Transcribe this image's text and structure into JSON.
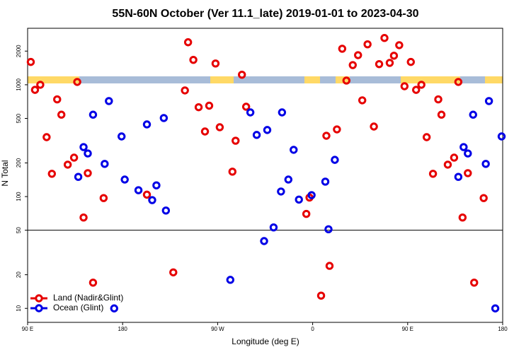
{
  "chart_data": {
    "type": "scatter",
    "title": "55N-60N October (Ver 11.1_late)   2019-01-01 to 2023-04-30",
    "xlabel": "Longitude (deg E)",
    "ylabel": "N Total",
    "xlim": [
      90,
      540
    ],
    "xticks": [
      {
        "value": 90,
        "label": "90 E"
      },
      {
        "value": 180,
        "label": "180"
      },
      {
        "value": 270,
        "label": "90 W"
      },
      {
        "value": 360,
        "label": "0"
      },
      {
        "value": 450,
        "label": "90 E"
      },
      {
        "value": 540,
        "label": "180"
      }
    ],
    "ylim": [
      7.5,
      3200
    ],
    "yscale": "log",
    "yticks": [
      10,
      20,
      50,
      100,
      200,
      500,
      1000,
      2000
    ],
    "reference_line": 50,
    "legend": "lower left",
    "series": [
      {
        "name": "Land (Nadir&Glint)",
        "color": "#e60000",
        "x": [
          93,
          97,
          102,
          108,
          113,
          118,
          122,
          128,
          134,
          137,
          143,
          147,
          152,
          162,
          203,
          228,
          239,
          242,
          247,
          252,
          258,
          262,
          268,
          272,
          284,
          287,
          293,
          297,
          354,
          357,
          368,
          373,
          376,
          383,
          388,
          392,
          398,
          403,
          407,
          412,
          418,
          423,
          428,
          433,
          437,
          442,
          447,
          453,
          458,
          463,
          468,
          474,
          479,
          482,
          488,
          494,
          498,
          502,
          507,
          513,
          522
        ],
        "values": [
          1600,
          900,
          1000,
          340,
          160,
          740,
          540,
          193,
          223,
          1060,
          65,
          162,
          17,
          97,
          104,
          21,
          890,
          2400,
          1670,
          630,
          382,
          650,
          1550,
          417,
          167,
          316,
          1230,
          636,
          70,
          98,
          13,
          350,
          24,
          399,
          2100,
          1090,
          1500,
          1840,
          726,
          2300,
          423,
          1530,
          2620,
          1570,
          1820,
          2260,
          970,
          1600,
          900,
          1000,
          340,
          160,
          740,
          540,
          193,
          223,
          1060,
          65,
          162,
          17,
          97
        ]
      },
      {
        "name": "Ocean (Glint)",
        "color": "#0000e6",
        "x": [
          138,
          143,
          147,
          152,
          163,
          167,
          172,
          179,
          182,
          195,
          203,
          208,
          212,
          219,
          221,
          282,
          301,
          307,
          314,
          317,
          323,
          330,
          331,
          337,
          342,
          347,
          359,
          372,
          375,
          381,
          498,
          503,
          507,
          512,
          524,
          527,
          533,
          539
        ],
        "values": [
          150,
          277,
          243,
          540,
          196,
          715,
          10,
          345,
          142,
          114,
          442,
          93,
          126,
          504,
          75,
          18,
          566,
          356,
          40,
          394,
          53,
          111,
          566,
          142,
          262,
          94,
          103,
          136,
          51,
          213,
          150,
          277,
          243,
          540,
          196,
          715,
          10,
          345
        ]
      }
    ]
  }
}
